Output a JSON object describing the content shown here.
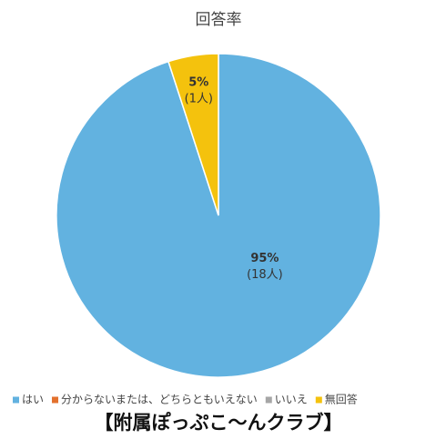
{
  "chart_data": {
    "type": "pie",
    "title": "回答率",
    "categories": [
      "はい",
      "分からないまたは、どちらともいえない",
      "いいえ",
      "無回答"
    ],
    "values": [
      95,
      0,
      0,
      5
    ],
    "value_labels": [
      "95%",
      null,
      null,
      "5%"
    ],
    "count_labels": [
      "(18人)",
      null,
      null,
      "(1人)"
    ],
    "colors": [
      "#62b2e0",
      "#e3712e",
      "#a6a6a6",
      "#f4c20d"
    ],
    "legend": "bottom",
    "caption": "【附属ぽっぷこ～んクラブ】"
  }
}
